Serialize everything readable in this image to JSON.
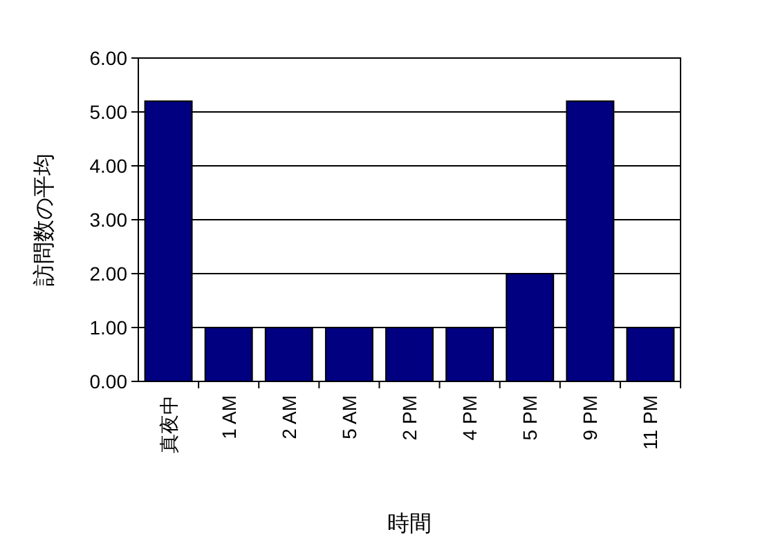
{
  "chart_data": {
    "type": "bar",
    "categories": [
      "真夜中",
      "1 AM",
      "2 AM",
      "5 AM",
      "2 PM",
      "4 PM",
      "5 PM",
      "9 PM",
      "11 PM"
    ],
    "values": [
      5.2,
      1,
      1,
      1,
      1,
      1,
      2,
      5.2,
      1
    ],
    "color": "#000080",
    "xlabel": "時間",
    "ylabel": "訪問数の平均",
    "ylim": [
      0,
      6
    ],
    "yticks": [
      {
        "value": 0,
        "label": "0.00"
      },
      {
        "value": 1,
        "label": "1.00"
      },
      {
        "value": 2,
        "label": "2.00"
      },
      {
        "value": 3,
        "label": "3.00"
      },
      {
        "value": 4,
        "label": "4.00"
      },
      {
        "value": 5,
        "label": "5.00"
      },
      {
        "value": 6,
        "label": "6.00"
      }
    ],
    "grid": "y"
  }
}
